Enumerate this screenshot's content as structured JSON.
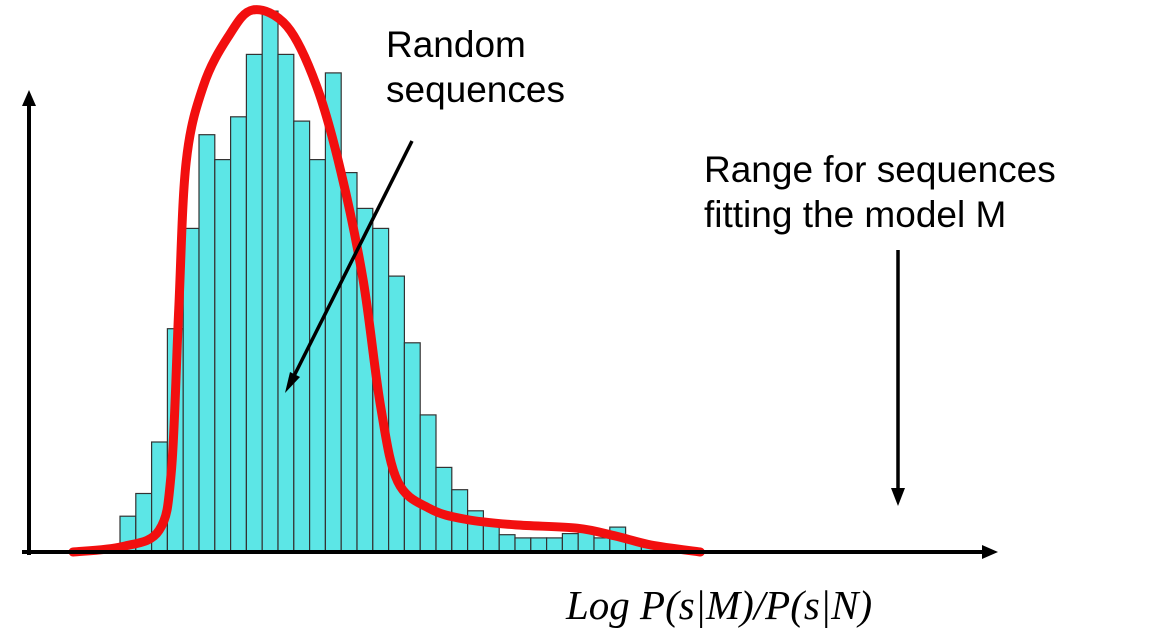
{
  "chart_data": {
    "type": "bar",
    "title": "",
    "xlabel": "Log P(s|M)/P(s|N)",
    "ylabel": "",
    "grid": false,
    "legend": "none",
    "ylim": [
      0,
      100
    ],
    "colors": {
      "bar_fill": "#5ce6e6",
      "bar_stroke": "#333333",
      "curve": "#f20f0f",
      "axis": "#000000"
    },
    "values": [
      6.6,
      10.8,
      20.3,
      41.2,
      59.7,
      77.0,
      72.4,
      80.3,
      91.8,
      99.8,
      91.8,
      79.5,
      72.4,
      88.4,
      70.0,
      63.4,
      59.7,
      50.9,
      38.6,
      25.3,
      15.6,
      11.5,
      7.6,
      5.0,
      3.2,
      2.6,
      2.6,
      2.6,
      3.4,
      4.4,
      2.6,
      4.6,
      2.0,
      1.3
    ],
    "fit_curve": [
      [
        0,
        0
      ],
      [
        2,
        1.0
      ],
      [
        3.5,
        4
      ],
      [
        4,
        15
      ],
      [
        4.3,
        45
      ],
      [
        4.6,
        72
      ],
      [
        5.3,
        86
      ],
      [
        6.3,
        95
      ],
      [
        7.3,
        100
      ],
      [
        8.7,
        97
      ],
      [
        9.9,
        86
      ],
      [
        10.9,
        70
      ],
      [
        11.8,
        50
      ],
      [
        12.5,
        27
      ],
      [
        13.2,
        13
      ],
      [
        14.5,
        8
      ],
      [
        16,
        6
      ],
      [
        18,
        5
      ],
      [
        20.5,
        4.4
      ],
      [
        22,
        3
      ],
      [
        23.5,
        1.3
      ],
      [
        25.5,
        0
      ]
    ],
    "annotations": {
      "random": [
        "Random",
        "sequences"
      ],
      "range": [
        "Range for sequences",
        "fitting the model M"
      ]
    }
  }
}
